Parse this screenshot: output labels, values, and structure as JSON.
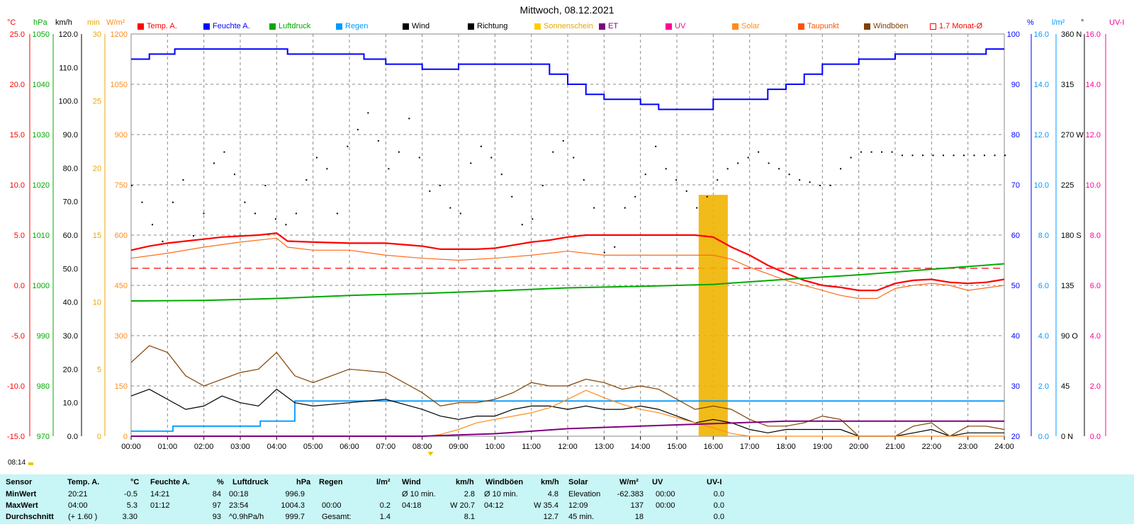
{
  "title": "Mittwoch, 08.12.2021",
  "units": {
    "temp": "°C",
    "hpa": "hPa",
    "kmh": "km/h",
    "min": "min",
    "wm2": "W/m²",
    "pct": "%",
    "lm2": "l/m²",
    "deg": "°",
    "uvi": "UV-I"
  },
  "legend": [
    {
      "label": "Temp. A.",
      "color": "#ff0000",
      "type": "fill"
    },
    {
      "label": "Feuchte A.",
      "color": "#0000ff",
      "type": "fill"
    },
    {
      "label": "Luftdruck",
      "color": "#00aa00",
      "type": "fill"
    },
    {
      "label": "Regen",
      "color": "#0099ff",
      "type": "fill"
    },
    {
      "label": "Wind",
      "color": "#000000",
      "type": "fill"
    },
    {
      "label": "Richtung",
      "color": "#000000",
      "type": "fill"
    },
    {
      "label": "Sonnenschein",
      "color": "#ffcc00",
      "type": "fill"
    },
    {
      "label": "ET",
      "color": "#800080",
      "type": "fill"
    },
    {
      "label": "UV",
      "color": "#ff0099",
      "type": "fill"
    },
    {
      "label": "Solar",
      "color": "#ff8c1a",
      "type": "fill"
    },
    {
      "label": "Taupunkt",
      "color": "#ff5500",
      "type": "fill"
    },
    {
      "label": "Windböen",
      "color": "#804000",
      "type": "fill"
    },
    {
      "label": "1.7 Monat-Ø",
      "color": "#ff0000",
      "type": "outline"
    }
  ],
  "sunrise_label": "08:14",
  "chart_data": {
    "type": "line",
    "title": "Mittwoch, 08.12.2021",
    "x_ticks": [
      "00:00",
      "01:00",
      "02:00",
      "03:00",
      "04:00",
      "05:00",
      "06:00",
      "07:00",
      "08:00",
      "09:00",
      "10:00",
      "11:00",
      "12:00",
      "13:00",
      "14:00",
      "15:00",
      "16:00",
      "17:00",
      "18:00",
      "19:00",
      "20:00",
      "21:00",
      "22:00",
      "23:00",
      "24:00"
    ],
    "axes": {
      "temp_c": {
        "range": [
          -15,
          25
        ],
        "ticks": [
          "25.0",
          "20.0",
          "15.0",
          "10.0",
          "5.0",
          "0.0",
          "-5.0",
          "-10.0",
          "-15.0"
        ]
      },
      "pressure_hpa": {
        "range": [
          970,
          1050
        ],
        "ticks": [
          "1050",
          "1040",
          "1030",
          "1020",
          "1010",
          "1000",
          "990",
          "980",
          "970"
        ]
      },
      "wind_kmh": {
        "range": [
          0,
          120
        ],
        "ticks": [
          "120.0",
          "110.0",
          "100.0",
          "90.0",
          "80.0",
          "70.0",
          "60.0",
          "50.0",
          "40.0",
          "30.0",
          "20.0",
          "10.0",
          "0.0"
        ]
      },
      "sun_min": {
        "range": [
          0,
          30
        ],
        "ticks": [
          "30",
          "25",
          "20",
          "15",
          "10",
          "5",
          "0"
        ]
      },
      "solar_wm2": {
        "range": [
          0,
          1200
        ],
        "ticks": [
          "1200",
          "1050",
          "900",
          "750",
          "600",
          "450",
          "300",
          "150",
          "0"
        ]
      },
      "humidity_pct": {
        "range": [
          20,
          100
        ],
        "ticks": [
          "100",
          "90",
          "80",
          "70",
          "60",
          "50",
          "40",
          "30",
          "20"
        ]
      },
      "rain_lm2": {
        "range": [
          0,
          16
        ],
        "ticks": [
          "16.0",
          "14.0",
          "12.0",
          "10.0",
          "8.0",
          "6.0",
          "4.0",
          "2.0",
          "0.0"
        ]
      },
      "direction_deg": {
        "range": [
          0,
          360
        ],
        "ticks": [
          "360 N",
          "315",
          "270 W",
          "225",
          "180 S",
          "135",
          "90 O",
          "45",
          "0 N"
        ]
      },
      "uv_index": {
        "range": [
          0,
          16
        ],
        "ticks": [
          "16.0",
          "14.0",
          "12.0",
          "10.0",
          "8.0",
          "6.0",
          "4.0",
          "2.0",
          "0.0"
        ]
      }
    },
    "monthly_avg_temp": 1.7,
    "series": [
      {
        "name": "Temp. A.",
        "axis": "temp_c",
        "color": "#ff0000",
        "x": [
          0,
          0.5,
          1,
          1.5,
          2,
          2.5,
          3,
          3.5,
          4,
          4.3,
          5,
          6,
          7,
          8,
          8.5,
          9,
          9.5,
          10,
          10.5,
          11,
          11.5,
          12,
          12.5,
          13,
          13.5,
          14,
          14.5,
          15,
          15.5,
          16,
          16.5,
          17,
          17.5,
          18,
          18.5,
          19,
          19.5,
          20,
          20.5,
          21,
          21.5,
          22,
          22.5,
          23,
          23.5,
          24
        ],
        "y": [
          3.5,
          3.9,
          4.2,
          4.4,
          4.6,
          4.8,
          4.9,
          5.0,
          5.2,
          4.4,
          4.3,
          4.2,
          4.2,
          3.9,
          3.6,
          3.6,
          3.6,
          3.7,
          4.0,
          4.3,
          4.5,
          4.8,
          5.0,
          5.0,
          5.0,
          5.0,
          5.0,
          5.0,
          5.0,
          4.8,
          3.8,
          3.0,
          2.0,
          1.2,
          0.5,
          0.0,
          -0.2,
          -0.5,
          -0.5,
          0.2,
          0.5,
          0.6,
          0.3,
          0.2,
          0.3,
          0.6
        ]
      },
      {
        "name": "Taupunkt",
        "axis": "temp_c",
        "color": "#ff6a1a",
        "x": [
          0,
          1,
          2,
          3,
          4,
          4.3,
          5,
          6,
          7,
          8,
          9,
          10,
          11,
          12,
          13,
          14,
          15,
          16,
          16.5,
          17,
          18,
          19,
          19.5,
          20,
          20.5,
          21,
          21.5,
          22,
          22.5,
          23,
          24
        ],
        "y": [
          2.7,
          3.2,
          3.8,
          4.3,
          4.7,
          3.8,
          3.5,
          3.5,
          3.0,
          2.7,
          2.5,
          2.7,
          3.0,
          3.4,
          3.0,
          3.0,
          3.0,
          3.0,
          2.6,
          1.8,
          0.5,
          -0.5,
          -1.0,
          -1.3,
          -1.3,
          -0.3,
          0.0,
          0.2,
          0.0,
          -0.5,
          0.0
        ]
      },
      {
        "name": "Luftdruck",
        "axis": "pressure_hpa",
        "color": "#00aa00",
        "x": [
          0,
          2,
          4,
          6,
          8,
          10,
          12,
          14,
          16,
          18,
          20,
          22,
          24
        ],
        "y": [
          996.9,
          997.0,
          997.4,
          998.0,
          998.4,
          998.9,
          999.5,
          999.8,
          1000.2,
          1001.2,
          1002.1,
          1003.2,
          1004.3
        ]
      },
      {
        "name": "Feuchte A.",
        "axis": "humidity_pct",
        "color": "#0000ff",
        "x": [
          0,
          0.4,
          0.5,
          1.2,
          4.0,
          4.3,
          6.4,
          7.0,
          8.0,
          8.5,
          9.0,
          11.0,
          11.5,
          12.0,
          12.5,
          13.0,
          13.5,
          14.0,
          14.5,
          15.0,
          15.5,
          16.0,
          17.0,
          17.5,
          18.0,
          18.5,
          19.0,
          20.0,
          21.0,
          21.5,
          23.0,
          23.5,
          24
        ],
        "y": [
          95,
          95,
          96,
          97,
          97,
          96,
          95,
          94,
          93,
          93,
          94,
          94,
          92,
          90,
          88,
          87,
          87,
          86,
          85,
          85,
          85,
          87,
          87,
          89,
          90,
          92,
          94,
          95,
          96,
          96,
          96,
          97,
          97
        ]
      },
      {
        "name": "Regen",
        "axis": "rain_lm2",
        "color": "#0099ff",
        "x": [
          0,
          1.1,
          1.15,
          3.5,
          3.55,
          4.2,
          4.5,
          24
        ],
        "y": [
          0.2,
          0.2,
          0.4,
          0.4,
          0.6,
          0.6,
          1.4,
          1.4
        ]
      },
      {
        "name": "Wind",
        "axis": "wind_kmh",
        "color": "#000000",
        "x": [
          0,
          0.5,
          1,
          1.5,
          2,
          2.5,
          3,
          3.5,
          4,
          4.5,
          5,
          6,
          7,
          8,
          8.5,
          9,
          9.5,
          10,
          10.5,
          11,
          11.5,
          12,
          12.5,
          13,
          13.5,
          14,
          14.5,
          15,
          15.5,
          16,
          16.5,
          17,
          17.5,
          18,
          18.5,
          19,
          19.5,
          20,
          20.5,
          21,
          21.5,
          22,
          22.5,
          23,
          23.5,
          24
        ],
        "y": [
          12,
          14,
          11,
          8,
          9,
          12,
          10,
          9,
          14,
          10,
          9,
          10,
          11,
          8,
          6,
          5,
          6,
          6,
          8,
          9,
          9,
          8,
          9,
          8,
          8,
          9,
          8,
          6,
          4,
          5,
          4,
          2,
          1,
          2,
          2,
          2,
          2,
          0,
          0,
          0,
          1,
          2,
          0,
          1,
          1,
          1
        ]
      },
      {
        "name": "Windböen",
        "axis": "wind_kmh",
        "color": "#804000",
        "x": [
          0,
          0.5,
          1,
          1.5,
          2,
          2.5,
          3,
          3.5,
          4,
          4.5,
          5,
          6,
          7,
          8,
          8.5,
          9,
          9.5,
          10,
          10.5,
          11,
          11.5,
          12,
          12.5,
          13,
          13.5,
          14,
          14.5,
          15,
          15.5,
          16,
          16.5,
          17,
          17.5,
          18,
          18.5,
          19,
          19.5,
          20,
          20.5,
          21,
          21.5,
          22,
          22.5,
          23,
          23.5,
          24
        ],
        "y": [
          22,
          27,
          25,
          18,
          15,
          17,
          19,
          20,
          25,
          18,
          16,
          20,
          19,
          13,
          9,
          10,
          10,
          11,
          13,
          16,
          15,
          15,
          17,
          16,
          14,
          15,
          14,
          11,
          8,
          9,
          8,
          5,
          3,
          3,
          4,
          6,
          5,
          0,
          0,
          0,
          3,
          4,
          0,
          3,
          3,
          2
        ]
      },
      {
        "name": "Solar",
        "axis": "solar_wm2",
        "color": "#ff8c1a",
        "x": [
          0,
          8.1,
          8.5,
          9,
          9.5,
          10,
          10.5,
          11,
          11.5,
          12,
          12.5,
          13,
          13.5,
          14,
          14.5,
          15,
          15.5,
          16,
          16.5,
          17,
          24
        ],
        "y": [
          0,
          0,
          5,
          20,
          40,
          50,
          60,
          70,
          85,
          110,
          137,
          115,
          95,
          80,
          70,
          55,
          40,
          25,
          8,
          0,
          0
        ]
      },
      {
        "name": "ET",
        "axis": "rain_lm2",
        "color": "#800080",
        "x": [
          0,
          8,
          10,
          12,
          14,
          16,
          18,
          24
        ],
        "y": [
          0,
          0,
          0.1,
          0.3,
          0.4,
          0.5,
          0.6,
          0.6
        ]
      },
      {
        "name": "Sonnenschein",
        "axis": "sun_min",
        "color": "#ffcc00",
        "x": [
          15.6,
          16.4
        ],
        "y": [
          18,
          18
        ]
      }
    ],
    "direction_points_deg": [
      225,
      210,
      190,
      175,
      210,
      230,
      180,
      200,
      245,
      255,
      235,
      210,
      200,
      225,
      195,
      190,
      200,
      230,
      250,
      240,
      200,
      260,
      275,
      290,
      265,
      240,
      255,
      285,
      250,
      220,
      225,
      205,
      200,
      245,
      260,
      250,
      235,
      215,
      190,
      195,
      225,
      255,
      265,
      250,
      230,
      205,
      165,
      170,
      205,
      215,
      235,
      260,
      240,
      230,
      220,
      205,
      215,
      230,
      240,
      245,
      250,
      255,
      245,
      240,
      235,
      230,
      228,
      225,
      225,
      240,
      250,
      255,
      255,
      255,
      255,
      252,
      252,
      252,
      252,
      252,
      252,
      252,
      252,
      252,
      252,
      252
    ]
  },
  "summary": {
    "headers": {
      "sensor": "Sensor",
      "temp": "Temp. A.",
      "temp_u": "°C",
      "hum": "Feuchte A.",
      "hum_u": "%",
      "pres": "Luftdruck",
      "pres_u": "hPa",
      "rain": "Regen",
      "rain_u": "l/m²",
      "wind": "Wind",
      "wind_u": "km/h",
      "gust": "Windböen",
      "gust_u": "km/h",
      "solar": "Solar",
      "solar_u": "W/m²",
      "uv": "UV",
      "uvi": "UV-I"
    },
    "rows": [
      {
        "label": "MinWert",
        "temp_t": "20:21",
        "temp_v": "-0.5",
        "hum_t": "14:21",
        "hum_v": "84",
        "pres_t": "00:18",
        "pres_v": "996.9",
        "rain_t": "",
        "rain_v": "",
        "wind_t": "Ø 10 min.",
        "wind_v": "2.8",
        "gust_t": "Ø 10 min.",
        "gust_v": "4.8",
        "solar_t": "Elevation",
        "solar_v": "-62.383",
        "uv_t": "00:00",
        "uv_v": "0.0"
      },
      {
        "label": "MaxWert",
        "temp_t": "04:00",
        "temp_v": "5.3",
        "hum_t": "01:12",
        "hum_v": "97",
        "pres_t": "23:54",
        "pres_v": "1004.3",
        "rain_t": "00:00",
        "rain_v": "0.2",
        "wind_t": "04:18",
        "wind_v": "W 20.7",
        "gust_t": "04:12",
        "gust_v": "W 35.4",
        "solar_t": "12:09",
        "solar_v": "137",
        "uv_t": "00:00",
        "uv_v": "0.0"
      },
      {
        "label": "Durchschnitt",
        "temp_t": "(+ 1.60 )",
        "temp_v": "3.30",
        "hum_t": "",
        "hum_v": "93",
        "pres_t": "^0.9hPa/h",
        "pres_v": "999.7",
        "rain_t": "Gesamt:",
        "rain_v": "1.4",
        "wind_t": "",
        "wind_v": "8.1",
        "gust_t": "",
        "gust_v": "12.7",
        "solar_t": "45 min.",
        "solar_v": "18",
        "uv_t": "",
        "uv_v": "0.0"
      }
    ]
  }
}
